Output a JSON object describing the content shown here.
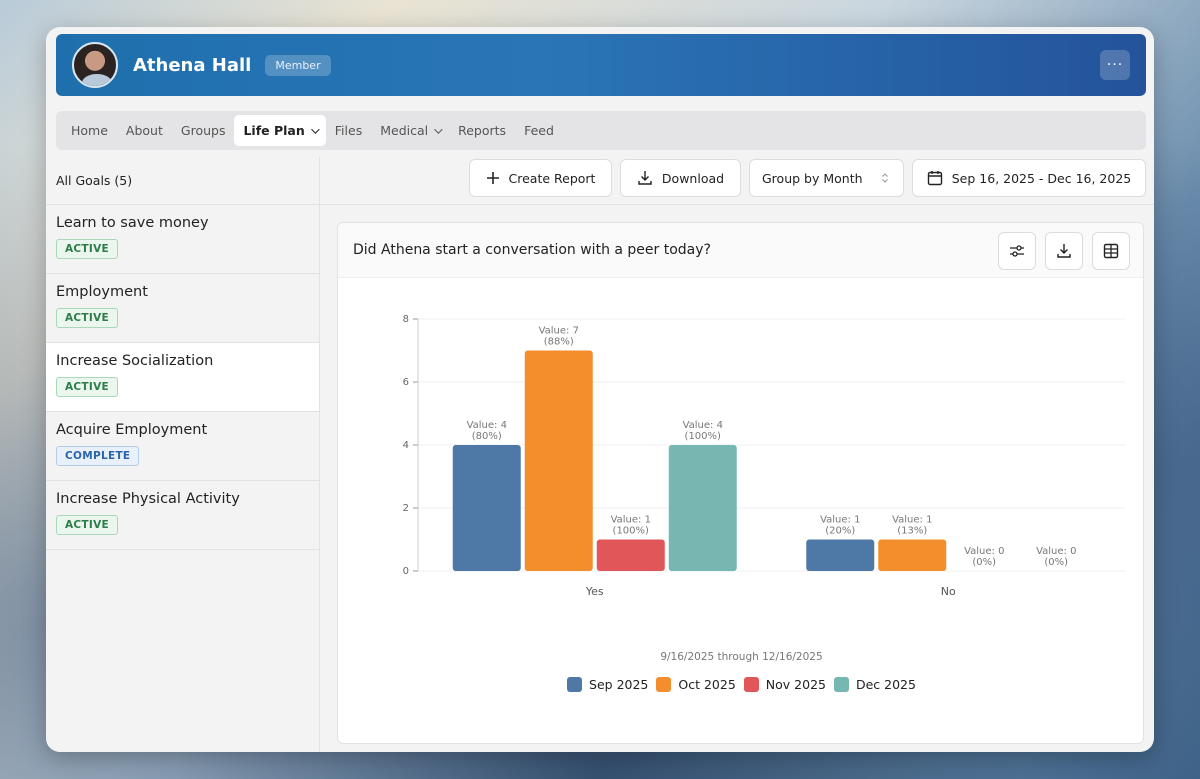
{
  "profile": {
    "name": "Athena Hall",
    "role_badge": "Member",
    "more_label": "···"
  },
  "nav": [
    {
      "label": "Home"
    },
    {
      "label": "About"
    },
    {
      "label": "Groups"
    },
    {
      "label": "Life Plan",
      "active": true,
      "dropdown": true
    },
    {
      "label": "Files"
    },
    {
      "label": "Medical",
      "dropdown": true
    },
    {
      "label": "Reports"
    },
    {
      "label": "Feed"
    }
  ],
  "sidebar": {
    "header": "All Goals (5)",
    "goals": [
      {
        "title": "Learn to save money",
        "status": "ACTIVE"
      },
      {
        "title": "Employment",
        "status": "ACTIVE"
      },
      {
        "title": "Increase Socialization",
        "status": "ACTIVE",
        "selected": true
      },
      {
        "title": "Acquire Employment",
        "status": "COMPLETE"
      },
      {
        "title": "Increase Physical Activity",
        "status": "ACTIVE"
      }
    ]
  },
  "toolbar": {
    "create_report": "Create Report",
    "download": "Download",
    "group_by": "Group by Month",
    "date_range": "Sep 16, 2025 - Dec 16, 2025"
  },
  "chart_card": {
    "title": "Did Athena start a conversation with a peer today?",
    "range_caption": "9/16/2025 through 12/16/2025"
  },
  "colors": {
    "Sep 2025": "#4e79a7",
    "Oct 2025": "#f28e2b",
    "Nov 2025": "#e15759",
    "Dec 2025": "#76b7b2"
  },
  "chart_data": {
    "type": "bar",
    "categories": [
      "Yes",
      "No"
    ],
    "ylim": [
      0,
      8
    ],
    "yticks": [
      0,
      2,
      4,
      6,
      8
    ],
    "grid": true,
    "legend_position": "bottom",
    "series": [
      {
        "name": "Sep 2025",
        "values": [
          4,
          1
        ],
        "percents": [
          "80%",
          "20%"
        ]
      },
      {
        "name": "Oct 2025",
        "values": [
          7,
          1
        ],
        "percents": [
          "88%",
          "13%"
        ]
      },
      {
        "name": "Nov 2025",
        "values": [
          1,
          0
        ],
        "percents": [
          "100%",
          "0%"
        ]
      },
      {
        "name": "Dec 2025",
        "values": [
          4,
          0
        ],
        "percents": [
          "100%",
          "0%"
        ]
      }
    ]
  }
}
